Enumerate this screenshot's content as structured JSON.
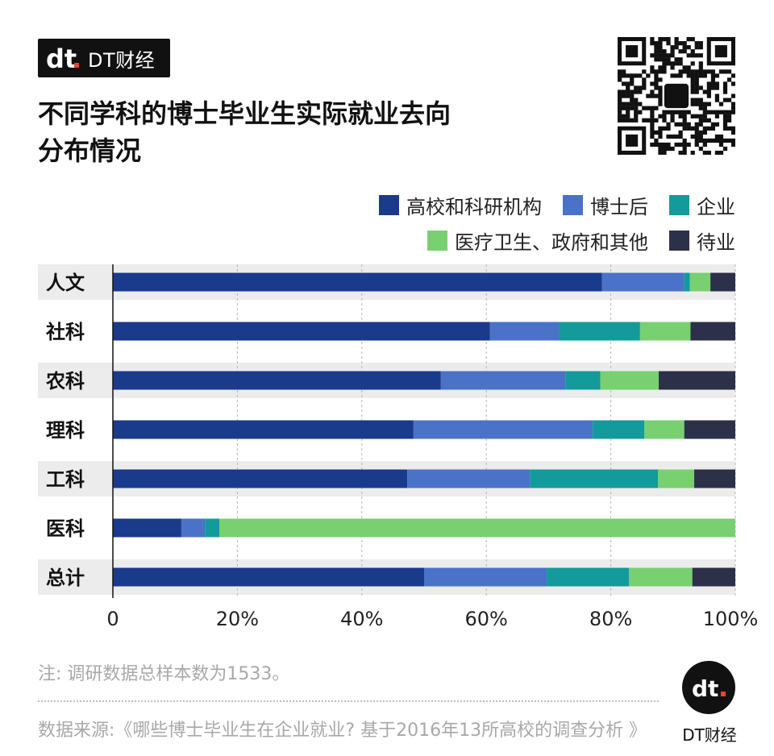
{
  "brand": {
    "name": "DT财经",
    "logo_text": "dt"
  },
  "title_line1": "不同学科的博士毕业生实际就业去向",
  "title_line2": "分布情况",
  "note": "注: 调研数据总样本数为1533。",
  "source": "数据来源:《哪些博士毕业生在企业就业? 基于2016年13所高校的调查分析 》",
  "footer_brand": "DT财经",
  "colors": {
    "university": "#1a3a8c",
    "postdoc": "#4a72c8",
    "enterprise": "#139a9a",
    "medical_gov": "#78d070",
    "unemployed": "#2c3048",
    "band": "#ececec",
    "grid": "#b5b5b5"
  },
  "chart_data": {
    "type": "bar",
    "orientation": "horizontal",
    "stacked": true,
    "categories": [
      "人文",
      "社科",
      "农科",
      "理科",
      "工科",
      "医科",
      "总计"
    ],
    "series": [
      {
        "name": "高校和科研机构",
        "color": "#1a3a8c",
        "values": [
          78.6,
          60.6,
          52.7,
          48.3,
          47.3,
          11.0,
          50.0
        ]
      },
      {
        "name": "博士后",
        "color": "#4a72c8",
        "values": [
          13.2,
          11.1,
          20.0,
          28.8,
          19.7,
          3.8,
          19.7
        ]
      },
      {
        "name": "企业",
        "color": "#139a9a",
        "values": [
          0.9,
          13.0,
          5.6,
          8.3,
          20.6,
          2.3,
          13.2
        ]
      },
      {
        "name": "医疗卫生、政府和其他",
        "color": "#78d070",
        "values": [
          3.3,
          8.1,
          9.4,
          6.4,
          5.8,
          82.9,
          10.2
        ]
      },
      {
        "name": "待业",
        "color": "#2c3048",
        "values": [
          4.0,
          7.2,
          12.3,
          8.2,
          6.6,
          0.0,
          6.9
        ]
      }
    ],
    "xlim": [
      0,
      100
    ],
    "xticks": [
      "0",
      "20%",
      "40%",
      "60%",
      "80%",
      "100%"
    ],
    "xtick_values": [
      0,
      20,
      40,
      60,
      80,
      100
    ],
    "grid": "vertical dashed",
    "legend": "top-right"
  }
}
